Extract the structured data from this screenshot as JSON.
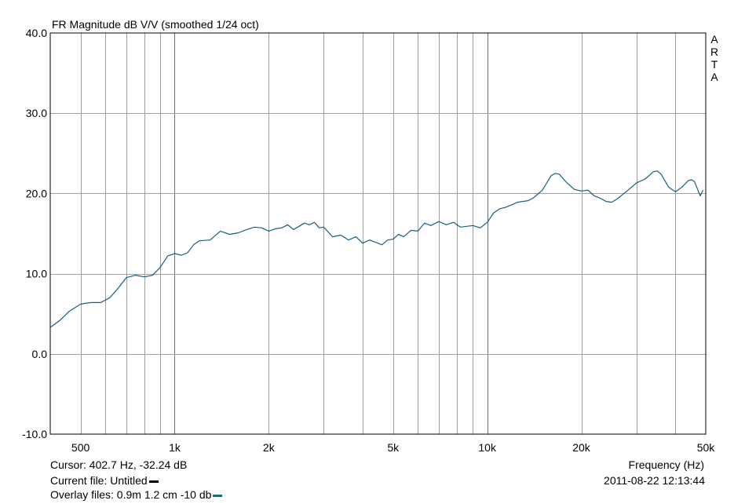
{
  "chart_data": {
    "type": "line",
    "title": "FR Magnitude dB V/V (smoothed 1/24 oct)",
    "xlabel": "Frequency (Hz)",
    "ylabel": "",
    "x_scale": "log",
    "xlim": [
      400,
      50000
    ],
    "ylim": [
      -10,
      40
    ],
    "grid": true,
    "x_ticks": [
      {
        "value": 500,
        "label": "500"
      },
      {
        "value": 1000,
        "label": "1k"
      },
      {
        "value": 2000,
        "label": "2k"
      },
      {
        "value": 5000,
        "label": "5k"
      },
      {
        "value": 10000,
        "label": "10k"
      },
      {
        "value": 20000,
        "label": "20k"
      },
      {
        "value": 50000,
        "label": "50k"
      }
    ],
    "y_ticks": [
      {
        "value": -10,
        "label": "-10.0"
      },
      {
        "value": 0,
        "label": "0.0"
      },
      {
        "value": 10,
        "label": "10.0"
      },
      {
        "value": 20,
        "label": "20.0"
      },
      {
        "value": 30,
        "label": "30.0"
      },
      {
        "value": 40,
        "label": "40.0"
      }
    ],
    "series": [
      {
        "color": "#1a5e80",
        "x": [
          400,
          430,
          460,
          500,
          540,
          580,
          620,
          660,
          700,
          750,
          800,
          850,
          900,
          950,
          1000,
          1050,
          1100,
          1150,
          1200,
          1300,
          1400,
          1500,
          1600,
          1700,
          1800,
          1900,
          2000,
          2100,
          2200,
          2300,
          2400,
          2500,
          2600,
          2700,
          2800,
          2900,
          3000,
          3200,
          3400,
          3600,
          3800,
          4000,
          4200,
          4400,
          4600,
          4800,
          5000,
          5200,
          5400,
          5700,
          6000,
          6300,
          6600,
          7000,
          7400,
          7800,
          8200,
          8600,
          9000,
          9500,
          10000,
          10500,
          11000,
          11500,
          12000,
          12500,
          13000,
          13500,
          14000,
          15000,
          16000,
          16500,
          17000,
          18000,
          19000,
          20000,
          21000,
          22000,
          23000,
          24000,
          25000,
          26000,
          28000,
          30000,
          32000,
          34000,
          35000,
          36000,
          38000,
          40000,
          42000,
          44000,
          45000,
          46000,
          47000,
          48000,
          49000
        ],
        "y": [
          3.3,
          4.2,
          5.3,
          6.2,
          6.4,
          6.4,
          7.0,
          8.2,
          9.5,
          9.8,
          9.6,
          9.8,
          10.8,
          12.2,
          12.5,
          12.3,
          12.6,
          13.6,
          14.1,
          14.2,
          15.3,
          14.9,
          15.1,
          15.5,
          15.8,
          15.7,
          15.3,
          15.6,
          15.7,
          16.1,
          15.5,
          15.9,
          16.3,
          16.1,
          16.4,
          15.7,
          15.8,
          14.6,
          14.8,
          14.2,
          14.6,
          13.8,
          14.2,
          13.9,
          13.6,
          14.2,
          14.3,
          14.9,
          14.6,
          15.4,
          15.3,
          16.3,
          16.0,
          16.5,
          16.1,
          16.4,
          15.8,
          15.9,
          16.0,
          15.7,
          16.4,
          17.6,
          18.1,
          18.3,
          18.6,
          18.9,
          19.0,
          19.1,
          19.4,
          20.4,
          22.2,
          22.5,
          22.4,
          21.3,
          20.5,
          20.3,
          20.4,
          19.7,
          19.4,
          19.0,
          18.9,
          19.3,
          20.3,
          21.3,
          21.8,
          22.7,
          22.8,
          22.4,
          20.8,
          20.2,
          20.8,
          21.6,
          21.7,
          21.5,
          20.6,
          19.7,
          20.4
        ]
      }
    ]
  },
  "brand": {
    "letters": [
      "A",
      "R",
      "T",
      "A"
    ]
  },
  "cursor_text": "Cursor: 402.7 Hz, -32.24 dB",
  "current_file_text": "Current file: Untitled",
  "overlay_files_text": "Overlay files: 0.9m 1.2 cm -10 db",
  "timestamp": "2011-08-22  12:13:44",
  "colors": {
    "current_file_swatch": "#000000",
    "overlay_swatch": "#1a6e72",
    "grid": "#a0a0a0",
    "frame": "#000000"
  }
}
